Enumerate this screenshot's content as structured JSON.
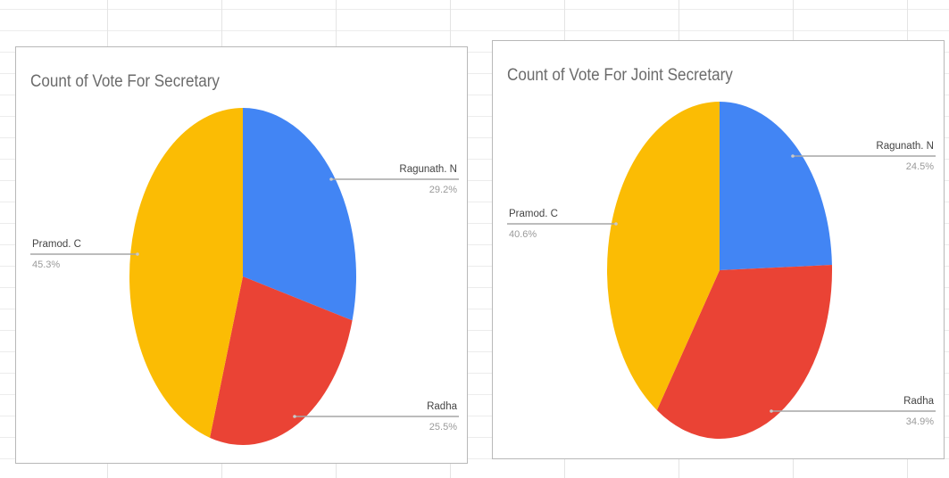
{
  "colors": {
    "blue": "#4285F4",
    "red": "#EA4335",
    "yellow": "#FBBC04"
  },
  "chart_data": [
    {
      "type": "pie",
      "title": "Count of Vote For Secretary",
      "categories": [
        "Ragunath. N",
        "Radha",
        "Pramod. C"
      ],
      "values": [
        29.2,
        25.5,
        45.3
      ],
      "labels": [
        "29.2%",
        "25.5%",
        "45.3%"
      ],
      "colors": [
        "#4285F4",
        "#EA4335",
        "#FBBC04"
      ],
      "legend": "none"
    },
    {
      "type": "pie",
      "title": "Count of Vote For Joint Secretary",
      "categories": [
        "Ragunath. N",
        "Radha",
        "Pramod. C"
      ],
      "values": [
        24.5,
        34.9,
        40.6
      ],
      "labels": [
        "24.5%",
        "34.9%",
        "40.6%"
      ],
      "colors": [
        "#4285F4",
        "#EA4335",
        "#FBBC04"
      ],
      "legend": "none"
    }
  ]
}
